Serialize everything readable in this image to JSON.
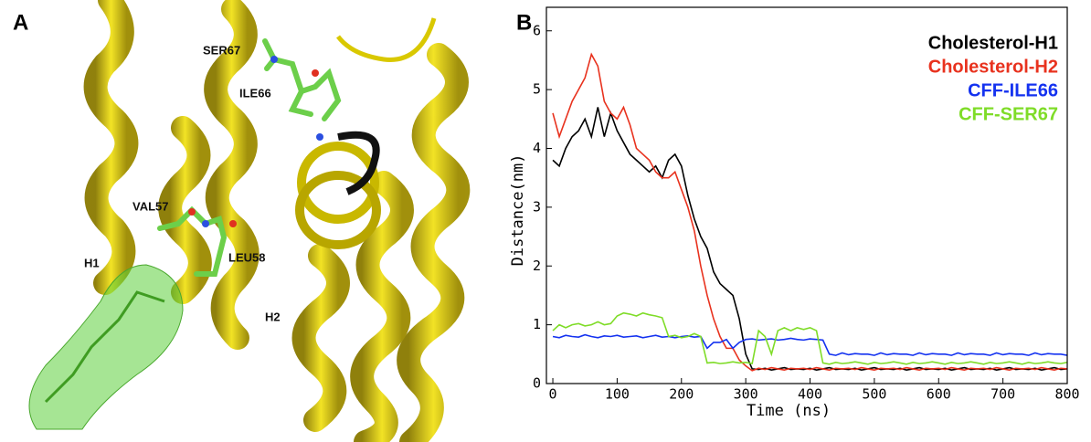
{
  "panel_a": {
    "label": "A",
    "annotations": [
      "SER67",
      "ILE66",
      "VAL57",
      "LEU58",
      "H1",
      "H2"
    ]
  },
  "chart_data": {
    "type": "line",
    "panel_label": "B",
    "x_label": "Time (ns)",
    "y_label": "Distance(nm)",
    "xlim": [
      -10,
      800
    ],
    "ylim": [
      0,
      6.4
    ],
    "xticks": [
      0,
      100,
      200,
      300,
      400,
      500,
      600,
      700,
      800
    ],
    "yticks": [
      0,
      1,
      2,
      3,
      4,
      5,
      6
    ],
    "legend": "top-right",
    "x": [
      0,
      10,
      20,
      30,
      40,
      50,
      60,
      70,
      80,
      90,
      100,
      110,
      120,
      130,
      140,
      150,
      160,
      170,
      180,
      190,
      200,
      210,
      220,
      230,
      240,
      250,
      260,
      270,
      280,
      290,
      300,
      310,
      320,
      330,
      340,
      350,
      360,
      370,
      380,
      390,
      400,
      410,
      420,
      430,
      440,
      450,
      460,
      470,
      480,
      490,
      500,
      510,
      520,
      530,
      540,
      550,
      560,
      570,
      580,
      590,
      600,
      610,
      620,
      630,
      640,
      650,
      660,
      670,
      680,
      690,
      700,
      710,
      720,
      730,
      740,
      750,
      760,
      770,
      780,
      790,
      800
    ],
    "series": [
      {
        "name": "Cholesterol-H1",
        "color": "#000000",
        "values": [
          3.8,
          3.7,
          4.0,
          4.2,
          4.3,
          4.5,
          4.2,
          4.7,
          4.2,
          4.6,
          4.3,
          4.1,
          3.9,
          3.8,
          3.7,
          3.6,
          3.7,
          3.5,
          3.8,
          3.9,
          3.7,
          3.2,
          2.8,
          2.5,
          2.3,
          1.9,
          1.7,
          1.6,
          1.5,
          1.1,
          0.5,
          0.25,
          0.24,
          0.26,
          0.23,
          0.25,
          0.27,
          0.24,
          0.25,
          0.24,
          0.26,
          0.23,
          0.25,
          0.27,
          0.24,
          0.25,
          0.24,
          0.26,
          0.23,
          0.25,
          0.27,
          0.24,
          0.25,
          0.24,
          0.26,
          0.23,
          0.25,
          0.27,
          0.24,
          0.25,
          0.24,
          0.26,
          0.23,
          0.25,
          0.27,
          0.24,
          0.25,
          0.24,
          0.26,
          0.23,
          0.25,
          0.27,
          0.24,
          0.25,
          0.24,
          0.26,
          0.23,
          0.25,
          0.27,
          0.24,
          0.25
        ]
      },
      {
        "name": "Cholesterol-H2",
        "color": "#e8321e",
        "values": [
          4.6,
          4.2,
          4.5,
          4.8,
          5.0,
          5.2,
          5.6,
          5.4,
          4.8,
          4.6,
          4.5,
          4.7,
          4.4,
          4.0,
          3.9,
          3.8,
          3.6,
          3.5,
          3.5,
          3.6,
          3.3,
          3.0,
          2.6,
          2.0,
          1.5,
          1.1,
          0.8,
          0.6,
          0.6,
          0.4,
          0.3,
          0.22,
          0.26,
          0.24,
          0.27,
          0.25,
          0.23,
          0.26,
          0.25,
          0.26,
          0.24,
          0.27,
          0.25,
          0.23,
          0.26,
          0.25,
          0.26,
          0.24,
          0.27,
          0.25,
          0.23,
          0.26,
          0.25,
          0.26,
          0.24,
          0.27,
          0.25,
          0.23,
          0.26,
          0.25,
          0.26,
          0.24,
          0.27,
          0.25,
          0.23,
          0.26,
          0.25,
          0.26,
          0.24,
          0.27,
          0.25,
          0.23,
          0.26,
          0.25,
          0.26,
          0.24,
          0.27,
          0.25,
          0.23,
          0.26,
          0.25
        ]
      },
      {
        "name": "CFF-ILE66",
        "color": "#1432f0",
        "values": [
          0.8,
          0.78,
          0.82,
          0.8,
          0.79,
          0.83,
          0.8,
          0.78,
          0.81,
          0.8,
          0.82,
          0.79,
          0.8,
          0.81,
          0.78,
          0.8,
          0.82,
          0.79,
          0.8,
          0.78,
          0.8,
          0.81,
          0.79,
          0.8,
          0.6,
          0.7,
          0.7,
          0.75,
          0.6,
          0.7,
          0.75,
          0.76,
          0.74,
          0.75,
          0.76,
          0.74,
          0.75,
          0.77,
          0.75,
          0.74,
          0.76,
          0.75,
          0.74,
          0.5,
          0.48,
          0.52,
          0.49,
          0.51,
          0.5,
          0.5,
          0.48,
          0.52,
          0.49,
          0.51,
          0.5,
          0.5,
          0.48,
          0.52,
          0.49,
          0.51,
          0.5,
          0.5,
          0.48,
          0.52,
          0.49,
          0.51,
          0.5,
          0.5,
          0.48,
          0.52,
          0.49,
          0.51,
          0.5,
          0.5,
          0.48,
          0.52,
          0.49,
          0.51,
          0.5,
          0.5,
          0.48
        ]
      },
      {
        "name": "CFF-SER67",
        "color": "#7fdc28",
        "values": [
          0.9,
          1.0,
          0.95,
          1.0,
          1.02,
          0.98,
          1.0,
          1.05,
          1.0,
          1.02,
          1.15,
          1.2,
          1.18,
          1.15,
          1.2,
          1.17,
          1.15,
          1.12,
          0.8,
          0.82,
          0.78,
          0.8,
          0.85,
          0.8,
          0.35,
          0.36,
          0.34,
          0.35,
          0.37,
          0.35,
          0.36,
          0.34,
          0.9,
          0.8,
          0.5,
          0.9,
          0.95,
          0.9,
          0.95,
          0.92,
          0.95,
          0.9,
          0.35,
          0.33,
          0.36,
          0.34,
          0.35,
          0.37,
          0.35,
          0.33,
          0.36,
          0.34,
          0.35,
          0.37,
          0.35,
          0.33,
          0.36,
          0.34,
          0.35,
          0.37,
          0.35,
          0.33,
          0.36,
          0.34,
          0.35,
          0.37,
          0.35,
          0.33,
          0.36,
          0.34,
          0.35,
          0.37,
          0.35,
          0.33,
          0.36,
          0.34,
          0.35,
          0.37,
          0.35,
          0.34,
          0.36
        ]
      }
    ]
  }
}
